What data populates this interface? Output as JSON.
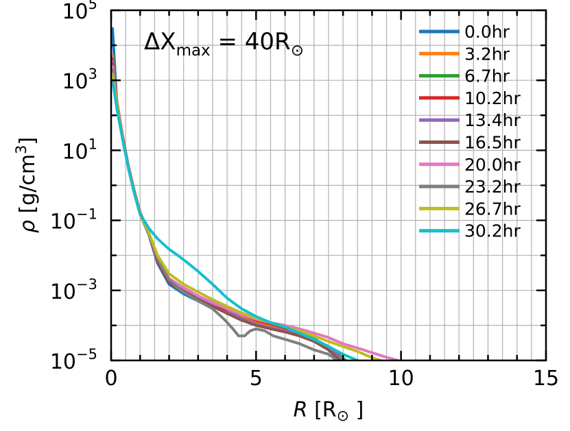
{
  "chart_data": {
    "type": "line",
    "title": "",
    "annotation": {
      "prefix": "ΔX",
      "sub": "max",
      "suffix": " = 40R",
      "sym": "⊙"
    },
    "xlabel": {
      "var": "R",
      "unit": "[R",
      "sym": "⊙",
      "close": "]"
    },
    "ylabel": {
      "var": "ρ",
      "unit": "[g/cm",
      "sup": "3",
      "close": "]"
    },
    "xlim": [
      0,
      15
    ],
    "ylim": [
      1e-05,
      100000
    ],
    "yscale": "log",
    "grid": true,
    "legend_position": "top-right",
    "x_ticks": [
      {
        "value": 0,
        "label": "0"
      },
      {
        "value": 5,
        "label": "5"
      },
      {
        "value": 10,
        "label": "10"
      },
      {
        "value": 15,
        "label": "15"
      }
    ],
    "y_ticks": [
      {
        "value": 1e-05,
        "base": "10",
        "exp": "−5"
      },
      {
        "value": 0.001,
        "base": "10",
        "exp": "−3"
      },
      {
        "value": 0.1,
        "base": "10",
        "exp": "−1"
      },
      {
        "value": 10,
        "base": "10",
        "exp": "1"
      },
      {
        "value": 1000,
        "base": "10",
        "exp": "3"
      },
      {
        "value": 100000,
        "base": "10",
        "exp": "5"
      }
    ],
    "series": [
      {
        "name": "0.0hr",
        "color": "#1f77b4",
        "x": [
          0.05,
          0.2,
          0.4,
          0.6,
          0.8,
          1.0,
          1.3,
          1.6,
          2.0,
          2.5,
          3.0,
          3.5,
          4.0,
          4.5,
          5.0,
          5.5,
          6.0,
          6.5,
          7.0,
          7.5,
          7.9
        ],
        "y": [
          30000,
          200,
          20,
          3,
          0.6,
          0.15,
          0.04,
          0.006,
          0.0015,
          0.0008,
          0.0005,
          0.00035,
          0.00025,
          0.00017,
          0.00012,
          9e-05,
          7e-05,
          5e-05,
          3.5e-05,
          2e-05,
          1e-05
        ]
      },
      {
        "name": "3.2hr",
        "color": "#ff7f0e",
        "x": [
          0.05,
          0.2,
          0.4,
          0.6,
          0.8,
          1.0,
          1.3,
          1.6,
          2.0,
          2.5,
          3.0,
          3.5,
          4.0,
          4.5,
          5.0,
          5.5,
          6.0,
          6.5,
          7.0,
          7.5,
          8.0
        ],
        "y": [
          5000,
          250,
          25,
          3.5,
          0.7,
          0.17,
          0.045,
          0.007,
          0.0018,
          0.0009,
          0.00055,
          0.00038,
          0.00027,
          0.00019,
          0.00013,
          0.0001,
          8e-05,
          6e-05,
          4e-05,
          2.2e-05,
          1e-05
        ]
      },
      {
        "name": "6.7hr",
        "color": "#2ca02c",
        "x": [
          0.05,
          0.2,
          0.4,
          0.6,
          0.8,
          1.0,
          1.3,
          1.6,
          2.0,
          2.5,
          3.0,
          3.5,
          4.0,
          4.5,
          5.0,
          5.5,
          6.0,
          6.5,
          7.0,
          7.5,
          8.1
        ],
        "y": [
          3000,
          220,
          22,
          3.2,
          0.65,
          0.16,
          0.045,
          0.008,
          0.002,
          0.001,
          0.0006,
          0.0004,
          0.00028,
          0.0002,
          0.00014,
          0.00011,
          8.5e-05,
          6.2e-05,
          4.2e-05,
          2.4e-05,
          1e-05
        ]
      },
      {
        "name": "10.2hr",
        "color": "#d62728",
        "x": [
          0.05,
          0.2,
          0.4,
          0.6,
          0.8,
          1.0,
          1.3,
          1.6,
          2.0,
          2.5,
          3.0,
          3.5,
          4.0,
          4.5,
          5.0,
          5.5,
          6.0,
          6.5,
          7.0,
          7.5,
          8.0
        ],
        "y": [
          4000,
          230,
          24,
          3.3,
          0.68,
          0.16,
          0.045,
          0.007,
          0.0018,
          0.00095,
          0.00058,
          0.0004,
          0.00028,
          0.0002,
          0.00014,
          0.00011,
          8.5e-05,
          6e-05,
          4e-05,
          2.2e-05,
          1e-05
        ]
      },
      {
        "name": "13.4hr",
        "color": "#9467bd",
        "x": [
          0.05,
          0.2,
          0.4,
          0.6,
          0.8,
          1.0,
          1.3,
          1.6,
          2.0,
          2.5,
          3.0,
          3.5,
          4.0,
          4.5,
          5.0,
          5.5,
          6.0,
          6.5,
          7.0,
          7.5,
          8.0
        ],
        "y": [
          3500,
          210,
          22,
          3.1,
          0.63,
          0.15,
          0.045,
          0.008,
          0.002,
          0.001,
          0.0006,
          0.00042,
          0.0003,
          0.00015,
          0.00011,
          8.5e-05,
          7e-05,
          6e-05,
          4e-05,
          2.5e-05,
          1e-05
        ]
      },
      {
        "name": "16.5hr",
        "color": "#8c564b",
        "x": [
          0.05,
          0.2,
          0.4,
          0.6,
          0.8,
          1.0,
          1.3,
          1.6,
          2.0,
          2.5,
          3.0,
          3.5,
          4.0,
          4.5,
          5.0,
          5.5,
          6.0,
          6.5,
          7.0,
          7.5,
          7.9
        ],
        "y": [
          3000,
          200,
          21,
          3.0,
          0.62,
          0.15,
          0.045,
          0.008,
          0.002,
          0.00095,
          0.00055,
          0.00035,
          0.00022,
          0.00014,
          0.0001,
          8e-05,
          6.5e-05,
          5e-05,
          3.5e-05,
          2e-05,
          1e-05
        ]
      },
      {
        "name": "20.0hr",
        "color": "#e377c2",
        "x": [
          0.05,
          0.2,
          0.4,
          0.6,
          0.8,
          1.0,
          1.3,
          1.6,
          2.0,
          2.5,
          3.0,
          3.5,
          4.0,
          4.5,
          5.0,
          5.5,
          6.0,
          6.5,
          7.0,
          7.5,
          8.0,
          8.7,
          9.4,
          9.9
        ],
        "y": [
          2500,
          200,
          21,
          3.0,
          0.62,
          0.15,
          0.045,
          0.008,
          0.0022,
          0.0012,
          0.0007,
          0.00045,
          0.0003,
          0.0002,
          0.00015,
          0.00012,
          0.0001,
          8e-05,
          6e-05,
          4.5e-05,
          3e-05,
          2e-05,
          1.3e-05,
          1e-05
        ]
      },
      {
        "name": "23.2hr",
        "color": "#7f7f7f",
        "x": [
          0.05,
          0.2,
          0.4,
          0.6,
          0.8,
          1.0,
          1.3,
          1.6,
          2.0,
          2.5,
          3.0,
          3.5,
          3.9,
          4.2,
          4.4,
          4.6,
          4.8,
          5.0,
          5.3,
          5.6,
          6.0,
          6.5,
          7.0,
          7.5,
          7.8
        ],
        "y": [
          2000,
          200,
          21,
          3.0,
          0.62,
          0.15,
          0.045,
          0.008,
          0.002,
          0.0009,
          0.0005,
          0.0003,
          0.00015,
          8e-05,
          5e-05,
          5e-05,
          7e-05,
          8e-05,
          7e-05,
          5e-05,
          4e-05,
          3e-05,
          2e-05,
          1.5e-05,
          1e-05
        ]
      },
      {
        "name": "26.7hr",
        "color": "#bcbd22",
        "x": [
          0.05,
          0.2,
          0.4,
          0.6,
          0.8,
          1.0,
          1.3,
          1.6,
          2.0,
          2.5,
          3.0,
          3.5,
          4.0,
          4.5,
          5.0,
          5.5,
          6.0,
          6.5,
          7.0,
          7.5,
          8.0,
          8.5,
          9.0,
          9.3
        ],
        "y": [
          1500,
          200,
          21,
          3.0,
          0.62,
          0.15,
          0.045,
          0.01,
          0.003,
          0.0015,
          0.0009,
          0.00055,
          0.00035,
          0.00023,
          0.00016,
          0.00012,
          9e-05,
          7e-05,
          5e-05,
          3.5e-05,
          2.5e-05,
          1.8e-05,
          1.2e-05,
          1e-05
        ]
      },
      {
        "name": "30.2hr",
        "color": "#17becf",
        "x": [
          0.05,
          0.2,
          0.4,
          0.6,
          0.8,
          1.0,
          1.3,
          1.6,
          2.0,
          2.3,
          2.6,
          3.0,
          3.5,
          4.0,
          4.5,
          5.0,
          5.5,
          6.0,
          6.5,
          7.0,
          7.5,
          8.0,
          8.5
        ],
        "y": [
          1000,
          150,
          20,
          3.0,
          0.6,
          0.15,
          0.06,
          0.03,
          0.015,
          0.01,
          0.0065,
          0.0035,
          0.0015,
          0.0006,
          0.0003,
          0.00018,
          0.00012,
          9e-05,
          6e-05,
          4e-05,
          2.5e-05,
          1.5e-05,
          1e-05
        ]
      }
    ]
  }
}
